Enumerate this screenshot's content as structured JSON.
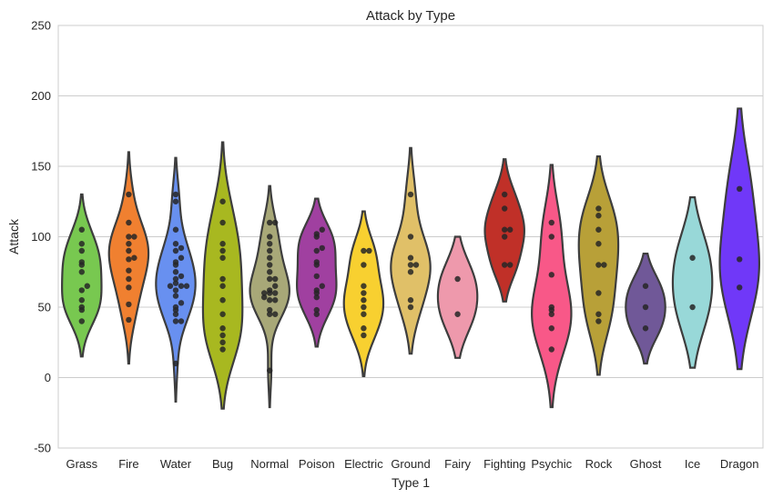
{
  "chart_data": {
    "type": "violin",
    "title": "Attack by Type",
    "xlabel": "Type 1",
    "ylabel": "Attack",
    "ylim": [
      -50,
      250
    ],
    "yticks": [
      -50,
      0,
      50,
      100,
      150,
      200,
      250
    ],
    "grid": true,
    "categories": [
      "Grass",
      "Fire",
      "Water",
      "Bug",
      "Normal",
      "Poison",
      "Electric",
      "Ground",
      "Fairy",
      "Fighting",
      "Psychic",
      "Rock",
      "Ghost",
      "Ice",
      "Dragon"
    ],
    "series": [
      {
        "category": "Grass",
        "color": "#78C850",
        "range": [
          15,
          130
        ],
        "points": [
          40,
          48,
          50,
          55,
          62,
          65,
          75,
          80,
          82,
          90,
          95,
          105
        ]
      },
      {
        "category": "Fire",
        "color": "#F08030",
        "range": [
          10,
          160
        ],
        "points": [
          41,
          52,
          64,
          70,
          76,
          84,
          85,
          90,
          95,
          100,
          100,
          110,
          130
        ]
      },
      {
        "category": "Water",
        "color": "#6890F0",
        "range": [
          -17,
          156
        ],
        "points": [
          10,
          40,
          40,
          45,
          48,
          50,
          53,
          58,
          62,
          65,
          65,
          65,
          67,
          70,
          72,
          75,
          80,
          82,
          85,
          90,
          92,
          95,
          105,
          125,
          130
        ]
      },
      {
        "category": "Bug",
        "color": "#A8B820",
        "range": [
          -22,
          167
        ],
        "points": [
          20,
          25,
          30,
          35,
          45,
          55,
          65,
          70,
          85,
          90,
          95,
          110,
          125
        ]
      },
      {
        "category": "Normal",
        "color": "#A8A878",
        "range": [
          -21,
          136
        ],
        "points": [
          5,
          45,
          45,
          48,
          55,
          55,
          57,
          60,
          60,
          60,
          62,
          65,
          70,
          70,
          75,
          80,
          85,
          90,
          95,
          100,
          110,
          110
        ]
      },
      {
        "category": "Poison",
        "color": "#A040A0",
        "range": [
          22,
          127
        ],
        "points": [
          45,
          48,
          57,
          60,
          62,
          65,
          72,
          80,
          82,
          90,
          92,
          100,
          102,
          105
        ]
      },
      {
        "category": "Electric",
        "color": "#F8D030",
        "range": [
          1,
          118
        ],
        "points": [
          30,
          35,
          45,
          50,
          55,
          60,
          65,
          80,
          90,
          90
        ]
      },
      {
        "category": "Ground",
        "color": "#E0C068",
        "range": [
          17,
          163
        ],
        "points": [
          50,
          55,
          75,
          80,
          80,
          85,
          100,
          130
        ]
      },
      {
        "category": "Fairy",
        "color": "#EE99AC",
        "range": [
          14,
          100
        ],
        "points": [
          45,
          70
        ]
      },
      {
        "category": "Fighting",
        "color": "#C03028",
        "range": [
          54,
          155
        ],
        "points": [
          80,
          80,
          100,
          105,
          105,
          120,
          130
        ]
      },
      {
        "category": "Psychic",
        "color": "#F85888",
        "range": [
          -21,
          151
        ],
        "points": [
          20,
          35,
          45,
          48,
          50,
          73,
          100,
          110
        ]
      },
      {
        "category": "Rock",
        "color": "#B8A038",
        "range": [
          2,
          157
        ],
        "points": [
          40,
          45,
          60,
          80,
          80,
          95,
          105,
          115,
          120
        ]
      },
      {
        "category": "Ghost",
        "color": "#705898",
        "range": [
          10,
          88
        ],
        "points": [
          35,
          50,
          65
        ]
      },
      {
        "category": "Ice",
        "color": "#98D8D8",
        "range": [
          7,
          128
        ],
        "points": [
          50,
          85
        ]
      },
      {
        "category": "Dragon",
        "color": "#7038F8",
        "range": [
          6,
          191
        ],
        "points": [
          64,
          84,
          134
        ]
      }
    ]
  }
}
